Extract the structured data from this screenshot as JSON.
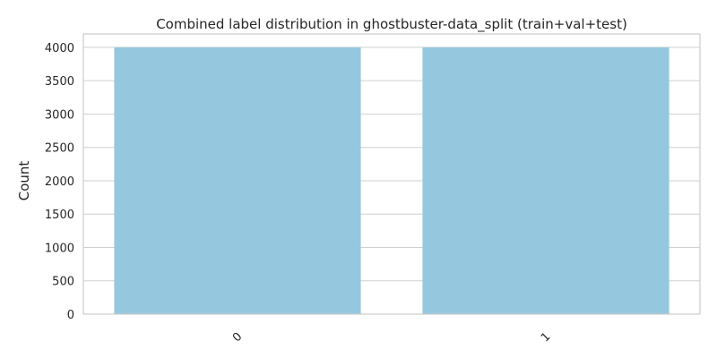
{
  "chart_data": {
    "type": "bar",
    "title": "Combined label distribution in ghostbuster-data_split (train+val+test)",
    "xlabel": "",
    "ylabel": "Count",
    "categories": [
      "0",
      "1"
    ],
    "values": [
      4000,
      4000
    ],
    "ylim": [
      0,
      4200
    ],
    "yticks": [
      0,
      500,
      1000,
      1500,
      2000,
      2500,
      3000,
      3500,
      4000
    ],
    "grid": "horizontal",
    "bar_color": "#95c8de",
    "grid_color": "#d0d0d0",
    "frame_color": "#cccccc",
    "xtick_rotation": 45
  }
}
